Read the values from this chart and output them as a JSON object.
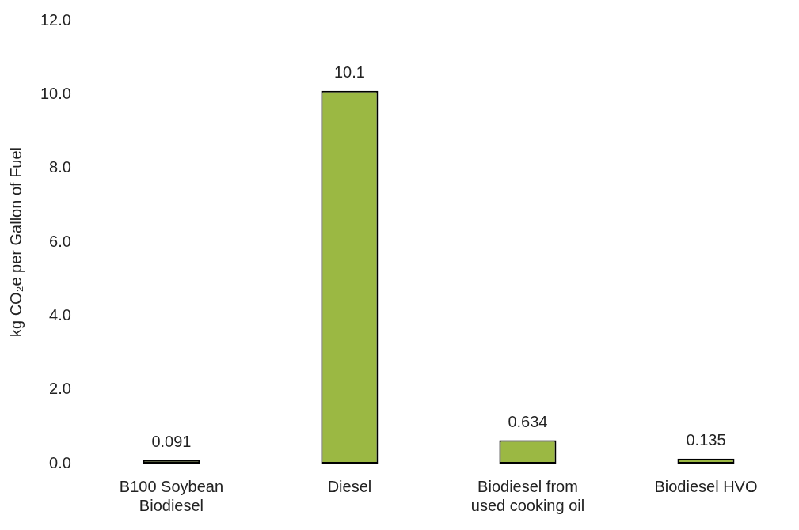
{
  "chart_data": {
    "type": "bar",
    "ylabel": "kg CO₂e per Gallon of Fuel",
    "categories": [
      "B100 Soybean Biodiesel",
      "Diesel",
      "Biodiesel from used cooking oil",
      "Biodiesel HVO"
    ],
    "values": [
      0.091,
      10.1,
      0.634,
      0.135
    ],
    "color": "#9bb843",
    "ylim": [
      0,
      12
    ],
    "yticks": [
      {
        "value": 0,
        "label": "0.0"
      },
      {
        "value": 2,
        "label": "2.0"
      },
      {
        "value": 4,
        "label": "4.0"
      },
      {
        "value": 6,
        "label": "6.0"
      },
      {
        "value": 8,
        "label": "8.0"
      },
      {
        "value": 10,
        "label": "10.0"
      },
      {
        "value": 12,
        "label": "12.0"
      }
    ],
    "grid": false,
    "data_labels": true
  }
}
